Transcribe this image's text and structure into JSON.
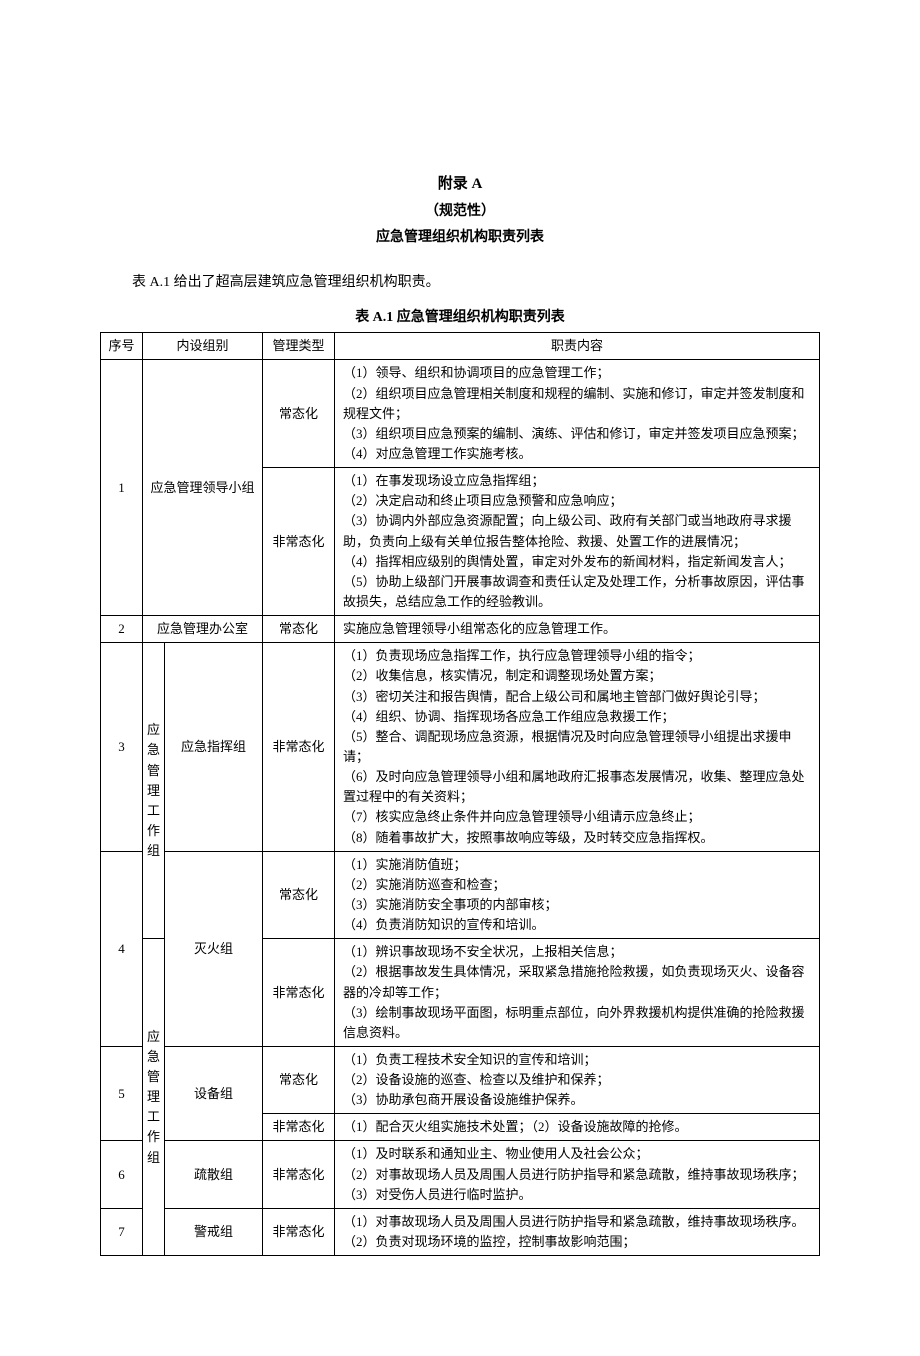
{
  "header": {
    "appendix": "附录 A",
    "normative": "（规范性）",
    "subtitle": "应急管理组织机构职责列表"
  },
  "caption": "表 A.1 给出了超高层建筑应急管理组织机构职责。",
  "tableTitle": "表 A.1 应急管理组织机构职责列表",
  "columns": {
    "seq": "序号",
    "group": "内设组别",
    "type": "管理类型",
    "duties": "职责内容"
  },
  "mgmtType": {
    "normal": "常态化",
    "abnormal": "非常态化"
  },
  "groupLabels": {
    "workGroup": "应急管理工作组",
    "mgmtGroup": "应急管理工作组"
  },
  "rows": {
    "r1": {
      "seq": "1",
      "group": "应急管理领导小组",
      "normal": "（1）领导、组织和协调项目的应急管理工作；\n（2）组织项目应急管理相关制度和规程的编制、实施和修订，审定并签发制度和规程文件；\n（3）组织项目应急预案的编制、演练、评估和修订，审定并签发项目应急预案；\n（4）对应急管理工作实施考核。",
      "abnormal": "（1）在事发现场设立应急指挥组；\n（2）决定启动和终止项目应急预警和应急响应；\n（3）协调内外部应急资源配置；向上级公司、政府有关部门或当地政府寻求援助，负责向上级有关单位报告整体抢险、救援、处置工作的进展情况；\n（4）指挥相应级别的舆情处置，审定对外发布的新闻材料，指定新闻发言人；\n（5）协助上级部门开展事故调查和责任认定及处理工作，分析事故原因，评估事故损失，总结应急工作的经验教训。"
    },
    "r2": {
      "seq": "2",
      "group": "应急管理办公室",
      "normal": "实施应急管理领导小组常态化的应急管理工作。"
    },
    "r3": {
      "seq": "3",
      "subgroup": "应急指挥组",
      "abnormal": "（1）负责现场应急指挥工作，执行应急管理领导小组的指令；\n（2）收集信息，核实情况，制定和调整现场处置方案；\n（3）密切关注和报告舆情，配合上级公司和属地主管部门做好舆论引导；\n（4）组织、协调、指挥现场各应急工作组应急救援工作；\n（5）整合、调配现场应急资源，根据情况及时向应急管理领导小组提出求援申请；\n（6）及时向应急管理领导小组和属地政府汇报事态发展情况，收集、整理应急处置过程中的有关资料；\n（7）核实应急终止条件并向应急管理领导小组请示应急终止；\n（8）随着事故扩大，按照事故响应等级，及时转交应急指挥权。"
    },
    "r4": {
      "seq": "4",
      "subgroup": "灭火组",
      "normal": "（1）实施消防值班；\n（2）实施消防巡查和检查；\n（3）实施消防安全事项的内部审核；\n（4）负责消防知识的宣传和培训。",
      "abnormal": "（1）辨识事故现场不安全状况，上报相关信息；\n（2）根据事故发生具体情况，采取紧急措施抢险救援，如负责现场灭火、设备容器的冷却等工作；\n（3）绘制事故现场平面图，标明重点部位，向外界救援机构提供准确的抢险救援信息资料。"
    },
    "r5": {
      "seq": "5",
      "subgroup": "设备组",
      "normal": "（1）负责工程技术安全知识的宣传和培训；\n（2）设备设施的巡查、检查以及维护和保养；\n（3）协助承包商开展设备设施维护保养。",
      "abnormal": "（1）配合灭火组实施技术处置；（2）设备设施故障的抢修。"
    },
    "r6": {
      "seq": "6",
      "subgroup": "疏散组",
      "abnormal": "（1）及时联系和通知业主、物业使用人及社会公众；\n（2）对事故现场人员及周围人员进行防护指导和紧急疏散，维持事故现场秩序；\n（3）对受伤人员进行临时监护。"
    },
    "r7": {
      "seq": "7",
      "subgroup": "警戒组",
      "abnormal": "（1）对事故现场人员及周围人员进行防护指导和紧急疏散，维持事故现场秩序。\n（2）负责对现场环境的监控，控制事故影响范围；"
    }
  }
}
